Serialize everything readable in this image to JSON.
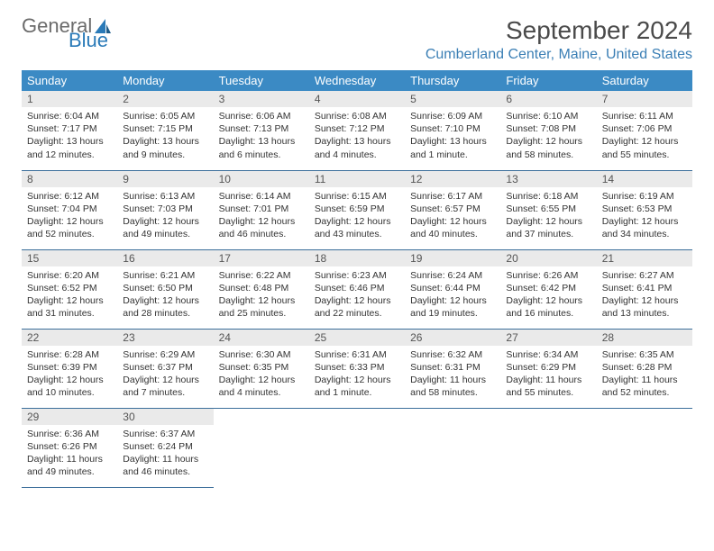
{
  "logo": {
    "text1": "General",
    "text2": "Blue"
  },
  "title": "September 2024",
  "location": "Cumberland Center, Maine, United States",
  "colors": {
    "header_bg": "#3b8ac4",
    "header_text": "#ffffff",
    "daynum_bg": "#eaeaea",
    "row_border": "#3b6e9a",
    "location_color": "#3b7fb5",
    "logo_gray": "#6b6b6b",
    "logo_blue": "#2a7ab8"
  },
  "weekdays": [
    "Sunday",
    "Monday",
    "Tuesday",
    "Wednesday",
    "Thursday",
    "Friday",
    "Saturday"
  ],
  "weeks": [
    [
      {
        "n": "1",
        "sunrise": "Sunrise: 6:04 AM",
        "sunset": "Sunset: 7:17 PM",
        "day": "Daylight: 13 hours and 12 minutes."
      },
      {
        "n": "2",
        "sunrise": "Sunrise: 6:05 AM",
        "sunset": "Sunset: 7:15 PM",
        "day": "Daylight: 13 hours and 9 minutes."
      },
      {
        "n": "3",
        "sunrise": "Sunrise: 6:06 AM",
        "sunset": "Sunset: 7:13 PM",
        "day": "Daylight: 13 hours and 6 minutes."
      },
      {
        "n": "4",
        "sunrise": "Sunrise: 6:08 AM",
        "sunset": "Sunset: 7:12 PM",
        "day": "Daylight: 13 hours and 4 minutes."
      },
      {
        "n": "5",
        "sunrise": "Sunrise: 6:09 AM",
        "sunset": "Sunset: 7:10 PM",
        "day": "Daylight: 13 hours and 1 minute."
      },
      {
        "n": "6",
        "sunrise": "Sunrise: 6:10 AM",
        "sunset": "Sunset: 7:08 PM",
        "day": "Daylight: 12 hours and 58 minutes."
      },
      {
        "n": "7",
        "sunrise": "Sunrise: 6:11 AM",
        "sunset": "Sunset: 7:06 PM",
        "day": "Daylight: 12 hours and 55 minutes."
      }
    ],
    [
      {
        "n": "8",
        "sunrise": "Sunrise: 6:12 AM",
        "sunset": "Sunset: 7:04 PM",
        "day": "Daylight: 12 hours and 52 minutes."
      },
      {
        "n": "9",
        "sunrise": "Sunrise: 6:13 AM",
        "sunset": "Sunset: 7:03 PM",
        "day": "Daylight: 12 hours and 49 minutes."
      },
      {
        "n": "10",
        "sunrise": "Sunrise: 6:14 AM",
        "sunset": "Sunset: 7:01 PM",
        "day": "Daylight: 12 hours and 46 minutes."
      },
      {
        "n": "11",
        "sunrise": "Sunrise: 6:15 AM",
        "sunset": "Sunset: 6:59 PM",
        "day": "Daylight: 12 hours and 43 minutes."
      },
      {
        "n": "12",
        "sunrise": "Sunrise: 6:17 AM",
        "sunset": "Sunset: 6:57 PM",
        "day": "Daylight: 12 hours and 40 minutes."
      },
      {
        "n": "13",
        "sunrise": "Sunrise: 6:18 AM",
        "sunset": "Sunset: 6:55 PM",
        "day": "Daylight: 12 hours and 37 minutes."
      },
      {
        "n": "14",
        "sunrise": "Sunrise: 6:19 AM",
        "sunset": "Sunset: 6:53 PM",
        "day": "Daylight: 12 hours and 34 minutes."
      }
    ],
    [
      {
        "n": "15",
        "sunrise": "Sunrise: 6:20 AM",
        "sunset": "Sunset: 6:52 PM",
        "day": "Daylight: 12 hours and 31 minutes."
      },
      {
        "n": "16",
        "sunrise": "Sunrise: 6:21 AM",
        "sunset": "Sunset: 6:50 PM",
        "day": "Daylight: 12 hours and 28 minutes."
      },
      {
        "n": "17",
        "sunrise": "Sunrise: 6:22 AM",
        "sunset": "Sunset: 6:48 PM",
        "day": "Daylight: 12 hours and 25 minutes."
      },
      {
        "n": "18",
        "sunrise": "Sunrise: 6:23 AM",
        "sunset": "Sunset: 6:46 PM",
        "day": "Daylight: 12 hours and 22 minutes."
      },
      {
        "n": "19",
        "sunrise": "Sunrise: 6:24 AM",
        "sunset": "Sunset: 6:44 PM",
        "day": "Daylight: 12 hours and 19 minutes."
      },
      {
        "n": "20",
        "sunrise": "Sunrise: 6:26 AM",
        "sunset": "Sunset: 6:42 PM",
        "day": "Daylight: 12 hours and 16 minutes."
      },
      {
        "n": "21",
        "sunrise": "Sunrise: 6:27 AM",
        "sunset": "Sunset: 6:41 PM",
        "day": "Daylight: 12 hours and 13 minutes."
      }
    ],
    [
      {
        "n": "22",
        "sunrise": "Sunrise: 6:28 AM",
        "sunset": "Sunset: 6:39 PM",
        "day": "Daylight: 12 hours and 10 minutes."
      },
      {
        "n": "23",
        "sunrise": "Sunrise: 6:29 AM",
        "sunset": "Sunset: 6:37 PM",
        "day": "Daylight: 12 hours and 7 minutes."
      },
      {
        "n": "24",
        "sunrise": "Sunrise: 6:30 AM",
        "sunset": "Sunset: 6:35 PM",
        "day": "Daylight: 12 hours and 4 minutes."
      },
      {
        "n": "25",
        "sunrise": "Sunrise: 6:31 AM",
        "sunset": "Sunset: 6:33 PM",
        "day": "Daylight: 12 hours and 1 minute."
      },
      {
        "n": "26",
        "sunrise": "Sunrise: 6:32 AM",
        "sunset": "Sunset: 6:31 PM",
        "day": "Daylight: 11 hours and 58 minutes."
      },
      {
        "n": "27",
        "sunrise": "Sunrise: 6:34 AM",
        "sunset": "Sunset: 6:29 PM",
        "day": "Daylight: 11 hours and 55 minutes."
      },
      {
        "n": "28",
        "sunrise": "Sunrise: 6:35 AM",
        "sunset": "Sunset: 6:28 PM",
        "day": "Daylight: 11 hours and 52 minutes."
      }
    ],
    [
      {
        "n": "29",
        "sunrise": "Sunrise: 6:36 AM",
        "sunset": "Sunset: 6:26 PM",
        "day": "Daylight: 11 hours and 49 minutes."
      },
      {
        "n": "30",
        "sunrise": "Sunrise: 6:37 AM",
        "sunset": "Sunset: 6:24 PM",
        "day": "Daylight: 11 hours and 46 minutes."
      },
      null,
      null,
      null,
      null,
      null
    ]
  ]
}
